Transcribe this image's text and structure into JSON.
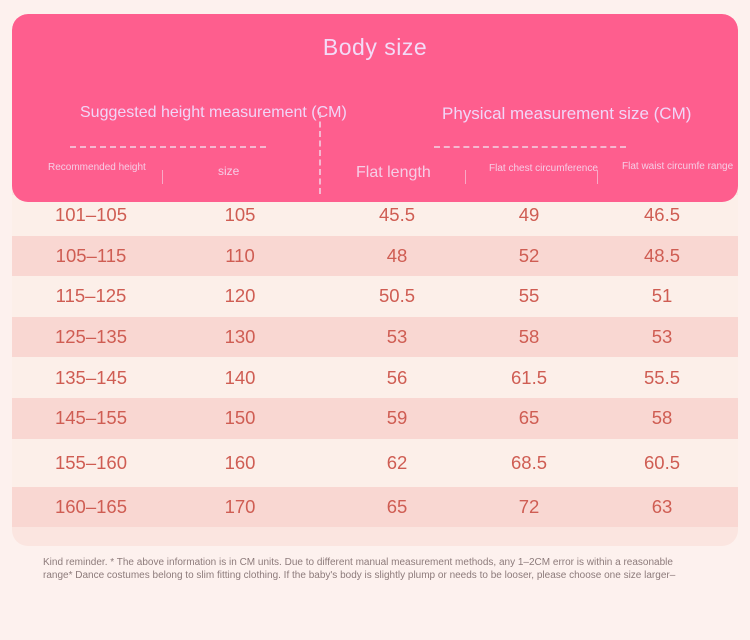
{
  "title": "Body size",
  "groups": {
    "left": "Suggested height measurement (CM)",
    "right": "Physical measurement size (CM)"
  },
  "columns": [
    "Recommended height",
    "size",
    "Flat length",
    "Flat chest circumference",
    "Flat waist circumfe range"
  ],
  "rows": [
    [
      "101–105",
      "105",
      "45.5",
      "49",
      "46.5"
    ],
    [
      "105–115",
      "110",
      "48",
      "52",
      "48.5"
    ],
    [
      "115–125",
      "120",
      "50.5",
      "55",
      "51"
    ],
    [
      "125–135",
      "130",
      "53",
      "58",
      "53"
    ],
    [
      "135–145",
      "140",
      "56",
      "61.5",
      "55.5"
    ],
    [
      "145–155",
      "150",
      "59",
      "65",
      "58"
    ],
    [
      "155–160",
      "160",
      "62",
      "68.5",
      "60.5"
    ],
    [
      "160–165",
      "170",
      "65",
      "72",
      "63"
    ]
  ],
  "note": "Kind reminder. * The above information is in CM units. Due to different manual measurement methods, any 1–2CM error is within a reasonable range* Dance costumes belong to slim fitting clothing. If the baby's body is slightly plump or needs to be looser, please choose one size larger–"
}
